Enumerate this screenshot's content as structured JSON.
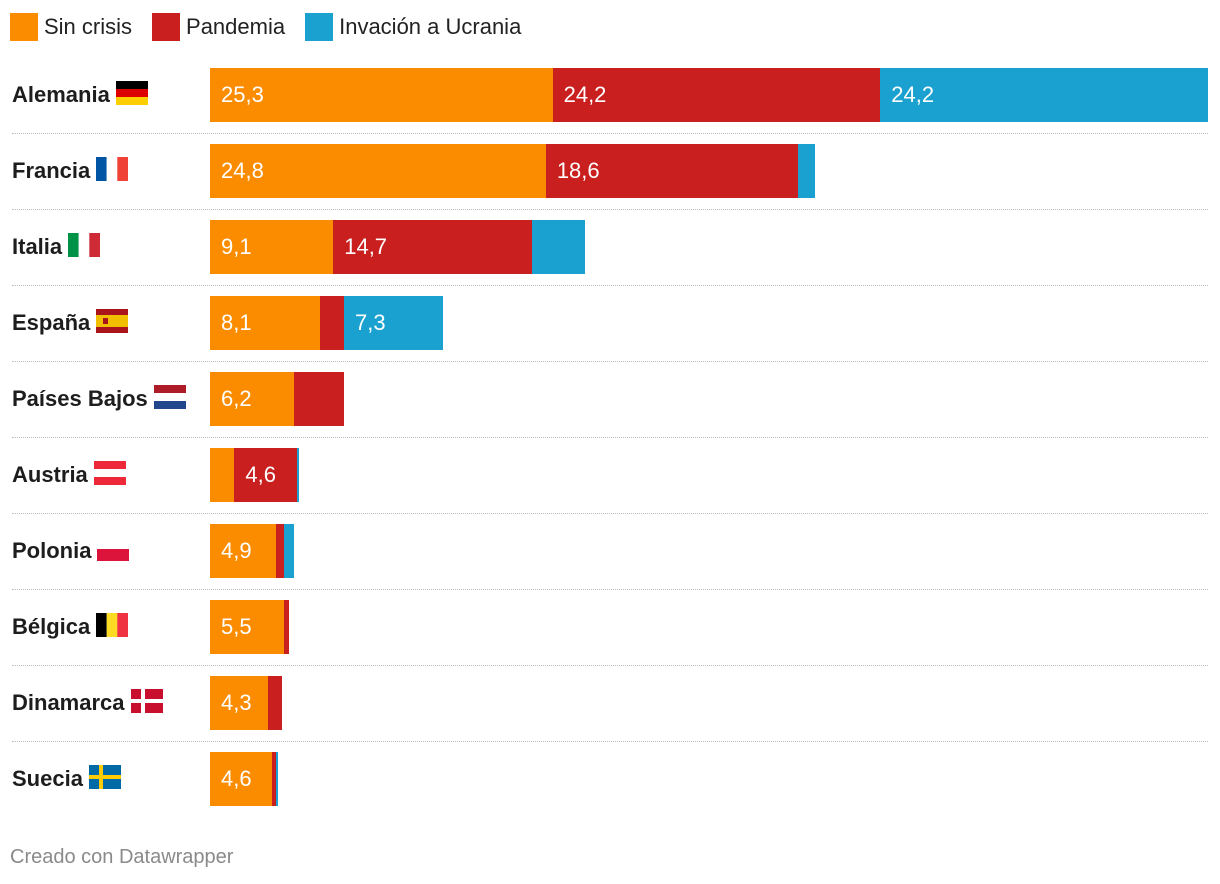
{
  "colors": {
    "sin_crisis": "#FB8C00",
    "pandemia": "#C91F1F",
    "ucrania": "#1BA1CF"
  },
  "legend": [
    {
      "label": "Sin crisis",
      "color": "#FB8C00"
    },
    {
      "label": "Pandemia",
      "color": "#C91F1F"
    },
    {
      "label": "Invación a Ucrania",
      "color": "#1BA1CF"
    }
  ],
  "chart_data": {
    "type": "bar",
    "orientation": "horizontal",
    "stacked": true,
    "categories": [
      "Alemania",
      "Francia",
      "Italia",
      "España",
      "Países Bajos",
      "Austria",
      "Polonia",
      "Bélgica",
      "Dinamarca",
      "Suecia"
    ],
    "series": [
      {
        "name": "Sin crisis",
        "values": [
          25.3,
          24.8,
          9.1,
          8.1,
          6.2,
          1.8,
          4.9,
          5.5,
          4.3,
          4.6
        ],
        "labels": [
          "25,3",
          "24,8",
          "9,1",
          "8,1",
          "6,2",
          "",
          "4,9",
          "5,5",
          "4,3",
          "4,6"
        ]
      },
      {
        "name": "Pandemia",
        "values": [
          24.2,
          18.6,
          14.7,
          1.8,
          3.7,
          4.6,
          0.6,
          0.3,
          1.0,
          0.3
        ],
        "labels": [
          "24,2",
          "18,6",
          "14,7",
          "",
          "",
          "4,6",
          "",
          "",
          "",
          ""
        ]
      },
      {
        "name": "Invación a Ucrania",
        "values": [
          24.2,
          1.3,
          3.9,
          7.3,
          0,
          0.15,
          0.7,
          0,
          0,
          0.15
        ],
        "labels": [
          "24,2",
          "",
          "",
          "7,3",
          "",
          "",
          "",
          "",
          "",
          ""
        ]
      }
    ],
    "flags": [
      "flag-de",
      "flag-fr",
      "flag-it",
      "flag-es",
      "flag-nl",
      "flag-at",
      "flag-pl",
      "flag-be",
      "flag-dk",
      "flag-se"
    ],
    "xlim": [
      0,
      73.7
    ],
    "legend_position": "top-left",
    "grid": false
  },
  "footer": {
    "credit": "Creado con Datawrapper"
  }
}
